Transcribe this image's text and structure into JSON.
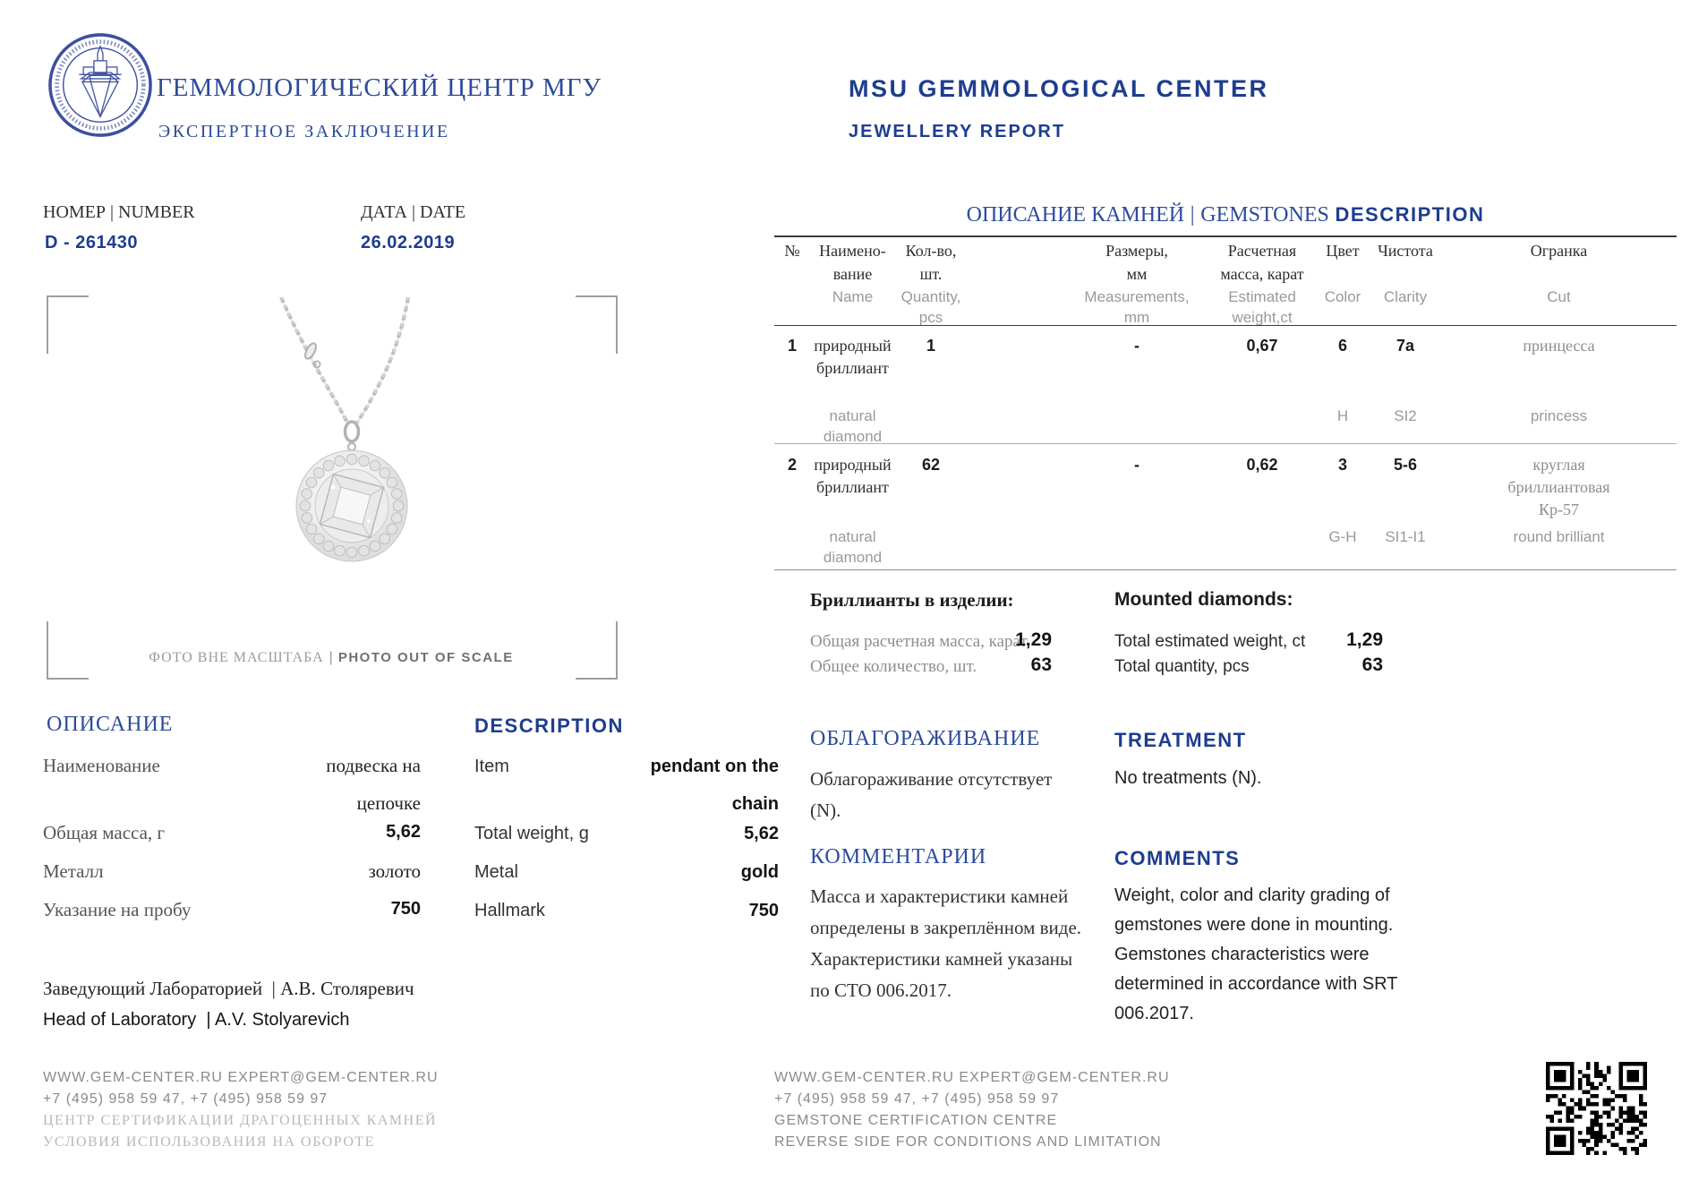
{
  "colors": {
    "brand_blue": "#2c4b9b",
    "navy": "#1d3d8f",
    "text_dark": "#262626",
    "gray": "#8e8e8e",
    "light_gray": "#b8b8b8"
  },
  "header": {
    "logo": "msu-gemmological-center-seal",
    "title_ru": "ГЕММОЛОГИЧЕСКИЙ ЦЕНТР МГУ",
    "subtitle_ru": "ЭКСПЕРТНОЕ ЗАКЛЮЧЕНИЕ",
    "title_en": "MSU GEMMOLOGICAL CENTER",
    "subtitle_en": "JEWELLERY REPORT"
  },
  "ref": {
    "number_label": "НОМЕР | NUMBER",
    "number_value": "D - 261430",
    "date_label": "ДАТА | DATE",
    "date_value": "26.02.2019"
  },
  "photo": {
    "caption_ru": "ФОТО ВНЕ МАСШТАБА",
    "sep": "|",
    "caption_en": "PHOTO OUT OF SCALE"
  },
  "gemstones": {
    "title_ru": "ОПИСАНИЕ КАМНЕЙ",
    "sep": "|",
    "title_mid": "GEMSTONES",
    "title_en": "DESCRIPTION",
    "header": {
      "num": "№",
      "name_ru1": "Наимено-",
      "name_ru2": "вание",
      "name_en1": "Name",
      "qty_ru1": "Кол-во,",
      "qty_ru2": "шт.",
      "qty_en1": "Quantity,",
      "qty_en2": "pcs",
      "meas_ru1": "Размеры,",
      "meas_ru2": "мм",
      "meas_en1": "Measurements,",
      "meas_en2": "mm",
      "wt_ru1": "Расчетная",
      "wt_ru2": "масса, карат",
      "wt_en1": "Estimated",
      "wt_en2": "weight,ct",
      "color_ru": "Цвет",
      "color_en": "Color",
      "clarity_ru": "Чистота",
      "clarity_en": "Clarity",
      "cut_ru": "Огранка",
      "cut_en": "Cut"
    },
    "rows": [
      {
        "num": "1",
        "name_ru1": "природный",
        "name_ru2": "бриллиант",
        "name_en1": "natural",
        "name_en2": "diamond",
        "qty": "1",
        "meas": "-",
        "wt": "0,67",
        "color_ru": "6",
        "color_en": "H",
        "clarity_ru": "7a",
        "clarity_en": "SI2",
        "cut_ru1": "принцесса",
        "cut_ru2": "",
        "cut_ru3": "",
        "cut_en": "princess"
      },
      {
        "num": "2",
        "name_ru1": "природный",
        "name_ru2": "бриллиант",
        "name_en1": "natural",
        "name_en2": "diamond",
        "qty": "62",
        "meas": "-",
        "wt": "0,62",
        "color_ru": "3",
        "color_en": "G-H",
        "clarity_ru": "5-6",
        "clarity_en": "SI1-I1",
        "cut_ru1": "круглая",
        "cut_ru2": "бриллиантовая",
        "cut_ru3": "Кр-57",
        "cut_en": "round brilliant"
      }
    ],
    "totals": {
      "title_ru": "Бриллианты в изделии:",
      "title_en": "Mounted diamonds:",
      "weight_label_ru": "Общая расчетная масса, карат",
      "weight_value_ru": "1,29",
      "qty_label_ru": "Общее количество, шт.",
      "qty_value_ru": "63",
      "weight_label_en": "Total estimated weight, ct",
      "weight_value_en": "1,29",
      "qty_label_en": "Total quantity, pcs",
      "qty_value_en": "63"
    }
  },
  "description": {
    "title_ru": "ОПИСАНИЕ",
    "title_en": "DESCRIPTION",
    "rows": [
      {
        "label_ru": "Наименование",
        "value_ru1": "подвеска на",
        "value_ru2": "цепочке",
        "label_en": "Item",
        "value_en1": "pendant on the",
        "value_en2": "chain",
        "numeric": false
      },
      {
        "label_ru": "Общая масса, г",
        "value_ru1": "5,62",
        "value_ru2": "",
        "label_en": "Total weight, g",
        "value_en1": "5,62",
        "value_en2": "",
        "numeric": true
      },
      {
        "label_ru": "Металл",
        "value_ru1": "золото",
        "value_ru2": "",
        "label_en": "Metal",
        "value_en1": "gold",
        "value_en2": "",
        "numeric": false
      },
      {
        "label_ru": "Указание на пробу",
        "value_ru1": "750",
        "value_ru2": "",
        "label_en": "Hallmark",
        "value_en1": "750",
        "value_en2": "",
        "numeric": true
      }
    ]
  },
  "signature": {
    "ru_role": "Заведующий Лабораторией",
    "ru_sep": "| ",
    "ru_name": "А.В. Столяревич",
    "en_role": "Head of Laboratory",
    "en_sep": "| ",
    "en_name": "A.V. Stolyarevich"
  },
  "treatment": {
    "title_ru": "ОБЛАГОРАЖИВАНИЕ",
    "title_en": "TREATMENT",
    "ru_lines": [
      "Облагораживание отсутствует",
      "(N)."
    ],
    "en_lines": [
      "No treatments (N)."
    ]
  },
  "comments": {
    "title_ru": "КОММЕНТАРИИ",
    "title_en": "COMMENTS",
    "ru_lines": [
      "Масса и характеристики камней",
      "определены в закреплённом виде.",
      "Характеристики камней указаны",
      "по СТО 006.2017."
    ],
    "en_lines": [
      "Weight, color and clarity grading of",
      "gemstones were done in mounting.",
      "Gemstones characteristics were",
      "determined in accordance with SRT",
      "006.2017."
    ]
  },
  "footer": {
    "left_lines": [
      "WWW.GEM-CENTER.RU EXPERT@GEM-CENTER.RU",
      "+7 (495) 958 59 47, +7 (495) 958 59 97",
      "ЦЕНТР СЕРТИФИКАЦИИ ДРАГОЦЕННЫХ КАМНЕЙ",
      "УСЛОВИЯ ИСПОЛЬЗОВАНИЯ НА ОБОРОТЕ"
    ],
    "right_lines": [
      "WWW.GEM-CENTER.RU EXPERT@GEM-CENTER.RU",
      "+7 (495) 958 59 47, +7 (495) 958 59 97",
      "GEMSTONE CERTIFICATION CENTRE",
      "REVERSE SIDE FOR CONDITIONS AND LIMITATION"
    ],
    "qr": "qr-code"
  }
}
